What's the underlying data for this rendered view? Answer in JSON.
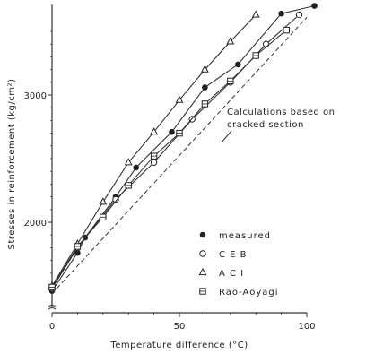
{
  "chart_data": {
    "type": "line",
    "title": "",
    "xlabel": "Temperature difference (°C)",
    "ylabel": "Stresses in reinforcement (kg/cm²)",
    "xlim": [
      0,
      105
    ],
    "ylim": [
      1300,
      3720
    ],
    "x_ticks": [
      "0",
      "50",
      "100"
    ],
    "y_ticks": [
      "2000",
      "3000"
    ],
    "grid": false,
    "legend_position": "lower-right",
    "annotation": "Calculations based on cracked section",
    "series": [
      {
        "name": "measured",
        "marker": "filled-circle",
        "x": [
          0,
          10,
          13,
          25,
          33,
          47,
          60,
          73,
          90,
          103
        ],
        "y": [
          1460,
          1760,
          1880,
          2200,
          2430,
          2710,
          3060,
          3240,
          3640,
          3700
        ]
      },
      {
        "name": "C E B",
        "marker": "open-circle",
        "x": [
          0,
          10,
          25,
          40,
          55,
          70,
          84,
          97
        ],
        "y": [
          1480,
          1800,
          2180,
          2470,
          2810,
          3100,
          3400,
          3630
        ]
      },
      {
        "name": "A C I",
        "marker": "triangle",
        "x": [
          0,
          10,
          20,
          30,
          40,
          50,
          60,
          70,
          80
        ],
        "y": [
          1500,
          1830,
          2160,
          2470,
          2710,
          2960,
          3200,
          3420,
          3630
        ]
      },
      {
        "name": "Rao-Aoyagi",
        "marker": "square",
        "x": [
          0,
          10,
          20,
          30,
          40,
          50,
          60,
          70,
          80,
          92
        ],
        "y": [
          1490,
          1810,
          2040,
          2290,
          2520,
          2700,
          2930,
          3110,
          3310,
          3510
        ]
      },
      {
        "name": "",
        "style": "dashed",
        "x": [
          0,
          100
        ],
        "y": [
          1440,
          3610
        ]
      }
    ]
  }
}
